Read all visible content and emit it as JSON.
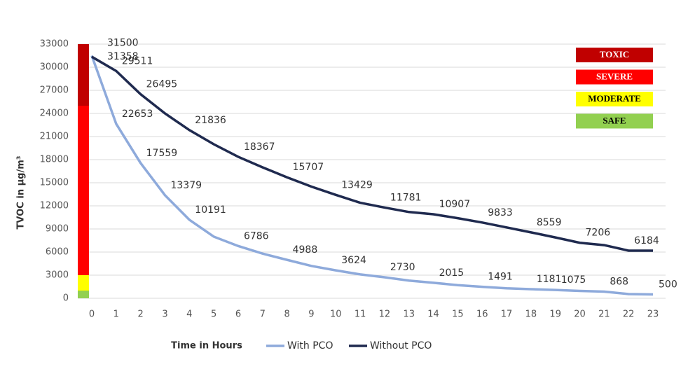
{
  "chart_data": {
    "type": "line",
    "x_label": "Time in Hours",
    "y_label": "TVOC in µg/m³",
    "categories": [
      "0",
      "1",
      "2",
      "3",
      "4",
      "5",
      "6",
      "7",
      "8",
      "9",
      "10",
      "11",
      "12",
      "13",
      "14",
      "15",
      "16",
      "17",
      "18",
      "19",
      "20",
      "21",
      "22",
      "23"
    ],
    "series": [
      {
        "name": "With PCO",
        "color": "#8eaadb",
        "values": [
          31500,
          22653,
          17559,
          13379,
          10191,
          8000,
          6786,
          5800,
          4988,
          4200,
          3624,
          3100,
          2730,
          2300,
          2015,
          1700,
          1491,
          1300,
          1181,
          1075,
          950,
          868,
          550,
          500
        ],
        "value_labels": [
          "31500",
          "22653",
          "17559",
          "13379",
          "10191",
          null,
          "6786",
          null,
          "4988",
          null,
          "3624",
          null,
          "2730",
          null,
          "2015",
          null,
          "1491",
          null,
          "1181",
          "1075",
          null,
          "868",
          null,
          "500"
        ]
      },
      {
        "name": "Without PCO",
        "color": "#1f2a4f",
        "values": [
          31358,
          29511,
          26495,
          24000,
          21836,
          20000,
          18367,
          17000,
          15707,
          14500,
          13429,
          12400,
          11781,
          11200,
          10907,
          10400,
          9833,
          9200,
          8559,
          7900,
          7206,
          6900,
          6184,
          6184
        ],
        "value_labels": [
          "31358",
          "29511",
          "26495",
          null,
          "21836",
          null,
          "18367",
          null,
          "15707",
          null,
          "13429",
          null,
          "11781",
          null,
          "10907",
          null,
          "9833",
          null,
          "8559",
          null,
          "7206",
          null,
          "6184",
          null
        ]
      }
    ],
    "ylim": [
      0,
      33000
    ],
    "yticks": [
      0,
      3000,
      6000,
      9000,
      12000,
      15000,
      18000,
      21000,
      24000,
      27000,
      30000,
      33000
    ],
    "bands": [
      {
        "label": "TOXIC",
        "color": "#c00000",
        "from": 25000,
        "to": 33000,
        "text_color": "#ffffff"
      },
      {
        "label": "SEVERE",
        "color": "#ff0000",
        "from": 3000,
        "to": 25000,
        "text_color": "#ffffff"
      },
      {
        "label": "MODERATE",
        "color": "#ffff00",
        "from": 1000,
        "to": 3000,
        "text_color": "#000000"
      },
      {
        "label": "SAFE",
        "color": "#92d050",
        "from": 0,
        "to": 1000,
        "text_color": "#000000"
      }
    ],
    "grid": true
  }
}
